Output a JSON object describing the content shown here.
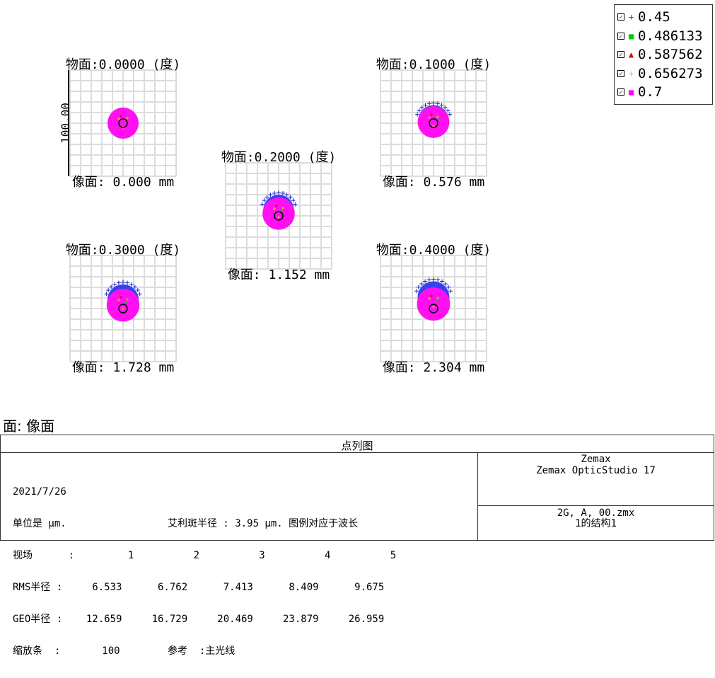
{
  "chart_data": {
    "type": "scatter",
    "title": "点列图",
    "units": "µm",
    "scale_bar": "100.00",
    "legend": [
      "0.45",
      "0.486133",
      "0.587562",
      "0.656273",
      "0.7"
    ],
    "legend_colors": [
      "#3333ff",
      "#00cc00",
      "#dd0000",
      "#ffb000",
      "#ff00ff"
    ],
    "legend_markers": [
      "+",
      "■",
      "▲",
      "+",
      "■"
    ],
    "fields": [
      {
        "obj": "物面:0.0000 (度)",
        "img": "像面: 0.000 mm",
        "rms": 6.533,
        "geo": 12.659,
        "blue_shift": 0,
        "blue_cap": 0
      },
      {
        "obj": "物面:0.1000 (度)",
        "img": "像面: 0.576 mm",
        "rms": 6.762,
        "geo": 16.729,
        "blue_shift": -4,
        "blue_cap": 6
      },
      {
        "obj": "物面:0.2000 (度)",
        "img": "像面: 1.152 mm",
        "rms": 7.413,
        "geo": 20.469,
        "blue_shift": -8,
        "blue_cap": 9
      },
      {
        "obj": "物面:0.3000 (度)",
        "img": "像面: 1.728 mm",
        "rms": 8.409,
        "geo": 23.879,
        "blue_shift": -12,
        "blue_cap": 11
      },
      {
        "obj": "物面:0.4000 (度)",
        "img": "像面: 2.304 mm",
        "rms": 9.675,
        "geo": 26.959,
        "blue_shift": -16,
        "blue_cap": 12
      }
    ],
    "airy_radius": 3.95,
    "grid": true
  },
  "surface_label": "面: 像面",
  "footer": {
    "title": "点列图",
    "info_lines": [
      "2021/7/26",
      "单位是 µm.                 艾利斑半径 : 3.95 µm. 图例对应于波长",
      "视场      :         1          2          3          4          5",
      "RMS半径 :     6.533      6.762      7.413      8.409      9.675",
      "GEO半径 :    12.659     16.729     20.469     23.879     26.959",
      "缩放条  :       100        参考  :主光线"
    ],
    "software_lines": [
      "Zemax",
      "Zemax OpticStudio 17"
    ],
    "file_lines": [
      "2G, A, 00.zmx",
      "1的结构1"
    ]
  }
}
